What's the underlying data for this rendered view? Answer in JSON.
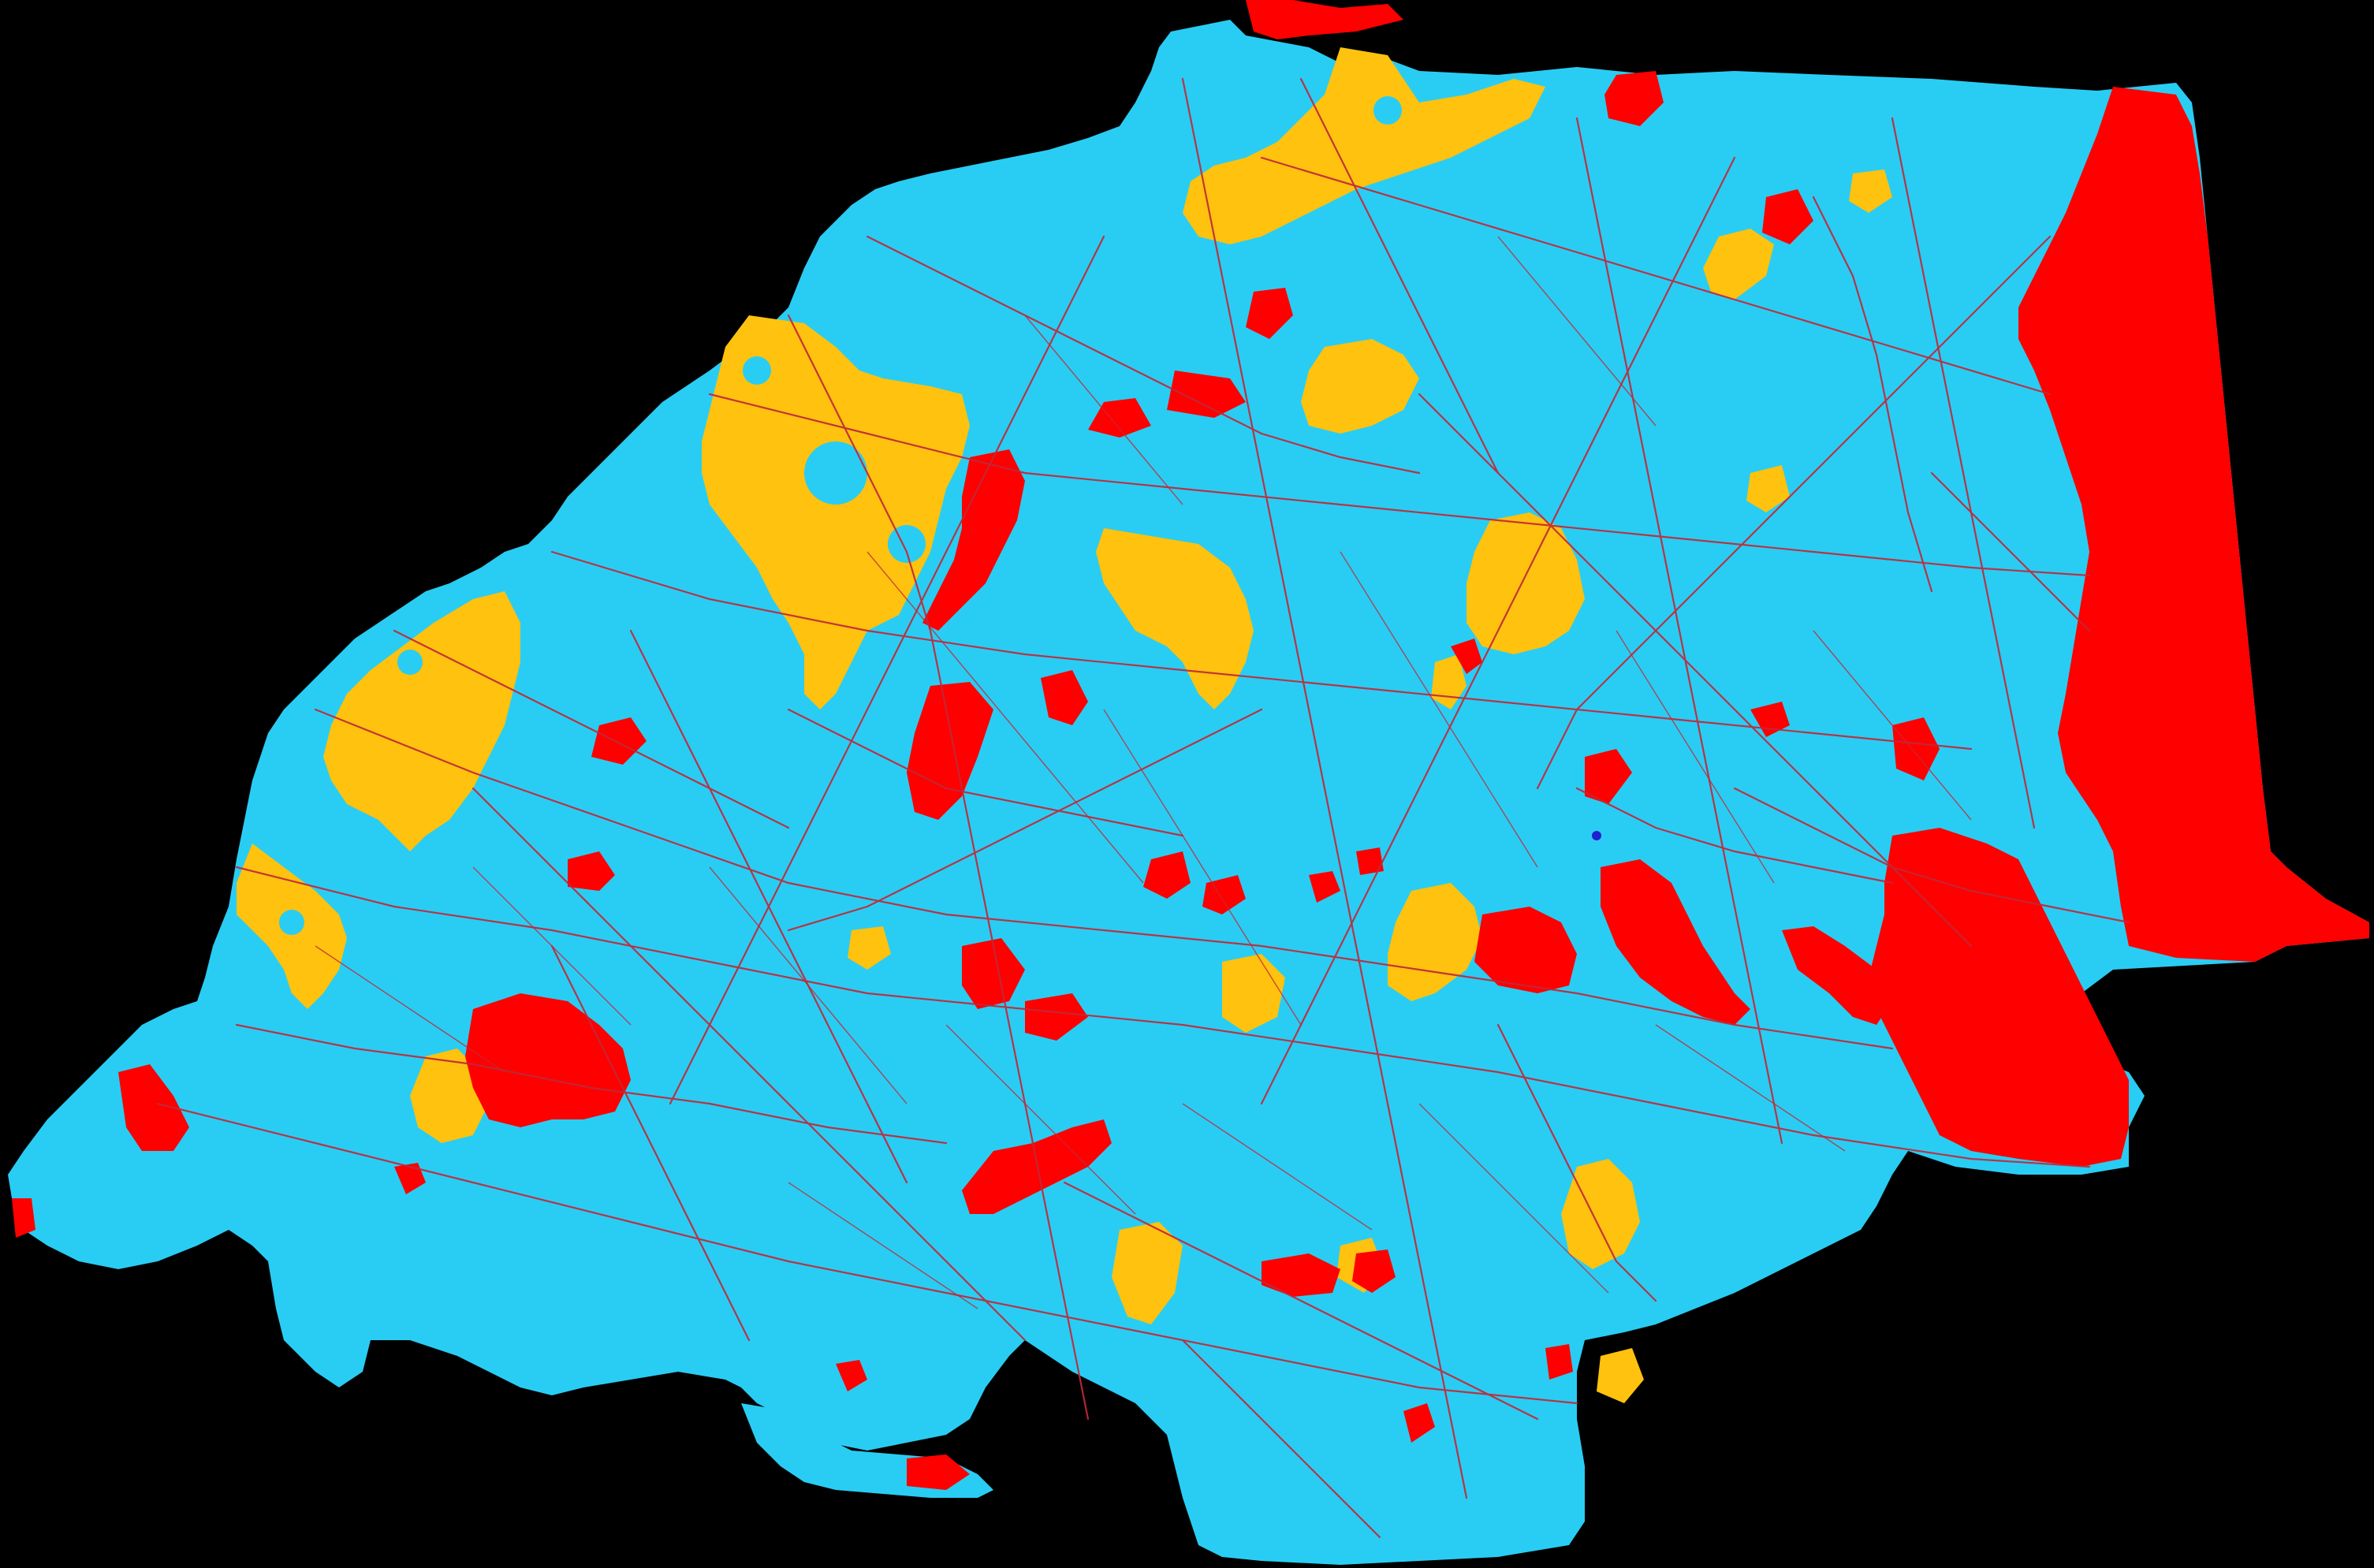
{
  "map": {
    "colors": {
      "background": "#000000",
      "base_region": "#29cdf3",
      "yellow_category": "#ffc20e",
      "red_category": "#ff0000",
      "roads": "#c0293a",
      "water_highlight": "#2020d0"
    },
    "layers": [
      "base-region",
      "yellow-patches",
      "red-patches",
      "road-network"
    ]
  }
}
